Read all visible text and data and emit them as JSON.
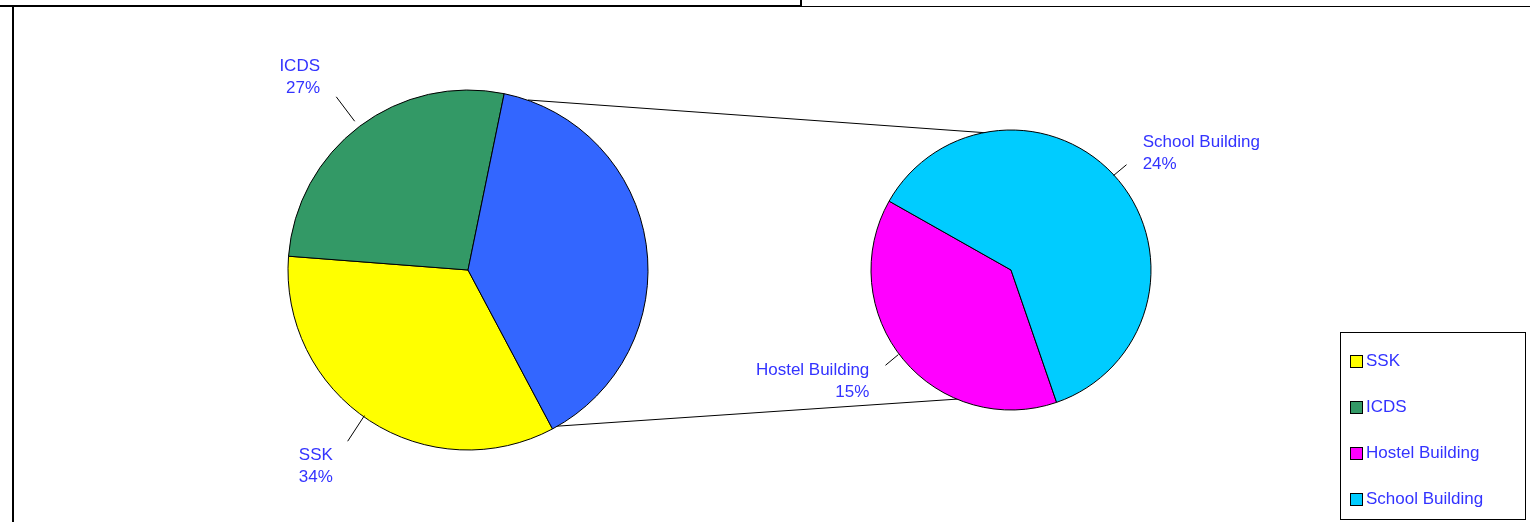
{
  "chart_data": [
    {
      "type": "pie",
      "categories": [
        "SSK",
        "ICDS",
        null
      ],
      "values": [
        34,
        27,
        39
      ],
      "colors": [
        "#ffff00",
        "#339966",
        "#3366ff"
      ],
      "value_labels": [
        "34%",
        "27%",
        null
      ],
      "legend": "right"
    },
    {
      "type": "pie",
      "categories": [
        "Hostel Building",
        "School Building"
      ],
      "values": [
        15,
        24
      ],
      "colors": [
        "#ff00ff",
        "#00ccff"
      ],
      "value_labels": [
        "15%",
        "24%"
      ],
      "legend": "right"
    }
  ]
}
